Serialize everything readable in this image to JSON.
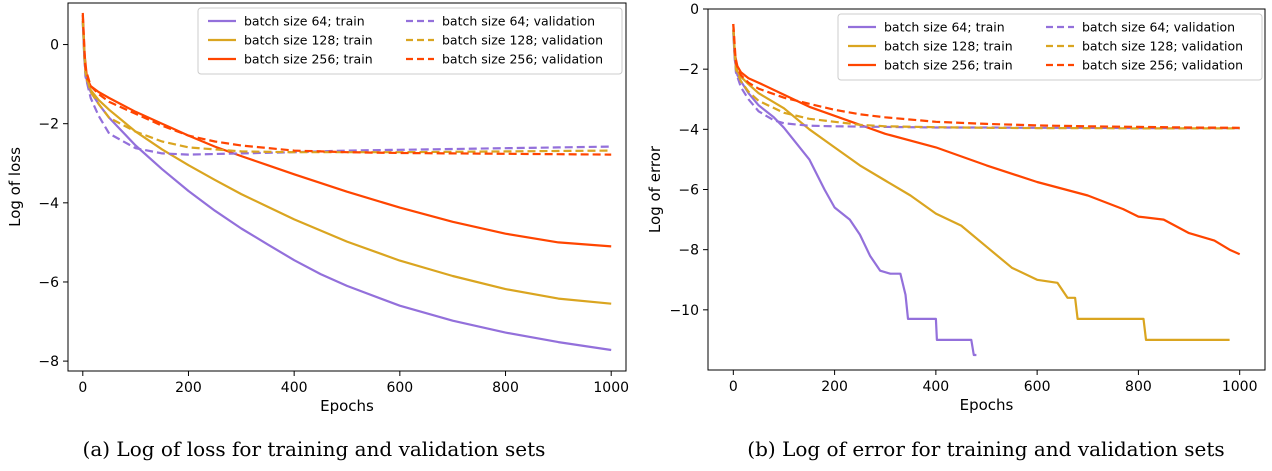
{
  "chart_data": [
    {
      "type": "line",
      "title": "",
      "caption": "(a) Log of loss for training and validation sets",
      "xlabel": "Epochs",
      "ylabel": "Log of loss",
      "xlim": [
        -28,
        1028
      ],
      "ylim": [
        -8.25,
        1.05
      ],
      "xticks": [
        0,
        200,
        400,
        600,
        800,
        1000
      ],
      "yticks": [
        0,
        -2,
        -4,
        -6,
        -8
      ],
      "legend": {
        "placement": "top-right",
        "columns": 2
      },
      "grid": false,
      "series": [
        {
          "name": "batch size 64; train",
          "color": "#9370DB",
          "style": "solid",
          "points": [
            [
              0,
              0.6
            ],
            [
              3,
              -0.4
            ],
            [
              8,
              -0.95
            ],
            [
              15,
              -1.2
            ],
            [
              30,
              -1.5
            ],
            [
              50,
              -1.85
            ],
            [
              100,
              -2.55
            ],
            [
              150,
              -3.15
            ],
            [
              200,
              -3.7
            ],
            [
              250,
              -4.2
            ],
            [
              300,
              -4.65
            ],
            [
              350,
              -5.05
            ],
            [
              400,
              -5.45
            ],
            [
              450,
              -5.8
            ],
            [
              500,
              -6.1
            ],
            [
              600,
              -6.6
            ],
            [
              700,
              -6.98
            ],
            [
              800,
              -7.28
            ],
            [
              900,
              -7.52
            ],
            [
              1000,
              -7.72
            ]
          ]
        },
        {
          "name": "batch size 128; train",
          "color": "#DAA520",
          "style": "solid",
          "points": [
            [
              0,
              0.65
            ],
            [
              3,
              -0.35
            ],
            [
              8,
              -0.9
            ],
            [
              15,
              -1.15
            ],
            [
              30,
              -1.4
            ],
            [
              50,
              -1.65
            ],
            [
              100,
              -2.2
            ],
            [
              150,
              -2.65
            ],
            [
              200,
              -3.05
            ],
            [
              250,
              -3.42
            ],
            [
              300,
              -3.78
            ],
            [
              350,
              -4.1
            ],
            [
              400,
              -4.42
            ],
            [
              500,
              -4.98
            ],
            [
              600,
              -5.46
            ],
            [
              700,
              -5.85
            ],
            [
              800,
              -6.18
            ],
            [
              900,
              -6.42
            ],
            [
              1000,
              -6.55
            ]
          ]
        },
        {
          "name": "batch size 256; train",
          "color": "#FF4500",
          "style": "solid",
          "points": [
            [
              0,
              0.8
            ],
            [
              3,
              -0.2
            ],
            [
              8,
              -0.85
            ],
            [
              15,
              -1.05
            ],
            [
              30,
              -1.2
            ],
            [
              50,
              -1.35
            ],
            [
              100,
              -1.7
            ],
            [
              150,
              -2.0
            ],
            [
              200,
              -2.3
            ],
            [
              250,
              -2.58
            ],
            [
              300,
              -2.82
            ],
            [
              350,
              -3.05
            ],
            [
              400,
              -3.28
            ],
            [
              500,
              -3.72
            ],
            [
              600,
              -4.12
            ],
            [
              700,
              -4.48
            ],
            [
              800,
              -4.78
            ],
            [
              900,
              -5.0
            ],
            [
              1000,
              -5.1
            ]
          ]
        },
        {
          "name": "batch size 64; validation",
          "color": "#9370DB",
          "style": "dashed",
          "points": [
            [
              0,
              0.55
            ],
            [
              5,
              -0.8
            ],
            [
              15,
              -1.35
            ],
            [
              30,
              -1.8
            ],
            [
              50,
              -2.25
            ],
            [
              100,
              -2.62
            ],
            [
              150,
              -2.75
            ],
            [
              200,
              -2.78
            ],
            [
              300,
              -2.75
            ],
            [
              400,
              -2.72
            ],
            [
              500,
              -2.68
            ],
            [
              600,
              -2.66
            ],
            [
              700,
              -2.64
            ],
            [
              800,
              -2.62
            ],
            [
              900,
              -2.6
            ],
            [
              1000,
              -2.58
            ]
          ]
        },
        {
          "name": "batch size 128; validation",
          "color": "#DAA520",
          "style": "dashed",
          "points": [
            [
              0,
              0.6
            ],
            [
              5,
              -0.7
            ],
            [
              15,
              -1.2
            ],
            [
              30,
              -1.5
            ],
            [
              50,
              -1.85
            ],
            [
              100,
              -2.2
            ],
            [
              150,
              -2.45
            ],
            [
              200,
              -2.6
            ],
            [
              300,
              -2.7
            ],
            [
              400,
              -2.72
            ],
            [
              500,
              -2.72
            ],
            [
              600,
              -2.72
            ],
            [
              700,
              -2.71
            ],
            [
              800,
              -2.7
            ],
            [
              900,
              -2.69
            ],
            [
              1000,
              -2.68
            ]
          ]
        },
        {
          "name": "batch size 256; validation",
          "color": "#FF4500",
          "style": "dashed",
          "points": [
            [
              0,
              0.75
            ],
            [
              5,
              -0.6
            ],
            [
              15,
              -1.05
            ],
            [
              30,
              -1.25
            ],
            [
              50,
              -1.45
            ],
            [
              100,
              -1.75
            ],
            [
              150,
              -2.05
            ],
            [
              200,
              -2.3
            ],
            [
              250,
              -2.45
            ],
            [
              300,
              -2.55
            ],
            [
              400,
              -2.68
            ],
            [
              500,
              -2.72
            ],
            [
              600,
              -2.74
            ],
            [
              700,
              -2.75
            ],
            [
              800,
              -2.76
            ],
            [
              900,
              -2.77
            ],
            [
              1000,
              -2.78
            ]
          ]
        }
      ]
    },
    {
      "type": "line",
      "title": "",
      "caption": "(b) Log of error for training and validation sets",
      "xlabel": "Epochs",
      "ylabel": "Log of error",
      "xlim": [
        -50,
        1050
      ],
      "ylim": [
        -12.0,
        0.0
      ],
      "xticks": [
        0,
        200,
        400,
        600,
        800,
        1000
      ],
      "yticks": [
        0,
        -2,
        -4,
        -6,
        -8,
        -10
      ],
      "legend": {
        "placement": "top-right",
        "columns": 2
      },
      "grid": false,
      "series": [
        {
          "name": "batch size 64; train",
          "color": "#9370DB",
          "style": "solid",
          "points": [
            [
              0,
              -0.8
            ],
            [
              3,
              -1.7
            ],
            [
              8,
              -2.2
            ],
            [
              15,
              -2.4
            ],
            [
              30,
              -2.8
            ],
            [
              50,
              -3.2
            ],
            [
              80,
              -3.6
            ],
            [
              100,
              -3.95
            ],
            [
              150,
              -5.0
            ],
            [
              180,
              -6.0
            ],
            [
              200,
              -6.6
            ],
            [
              230,
              -7.0
            ],
            [
              250,
              -7.5
            ],
            [
              270,
              -8.2
            ],
            [
              290,
              -8.7
            ],
            [
              310,
              -8.8
            ],
            [
              330,
              -8.8
            ],
            [
              340,
              -9.5
            ],
            [
              345,
              -10.3
            ],
            [
              400,
              -10.3
            ],
            [
              402,
              -11.0
            ],
            [
              470,
              -11.0
            ],
            [
              475,
              -11.5
            ],
            [
              480,
              -11.5
            ]
          ]
        },
        {
          "name": "batch size 128; train",
          "color": "#DAA520",
          "style": "solid",
          "points": [
            [
              0,
              -0.7
            ],
            [
              3,
              -1.6
            ],
            [
              8,
              -2.1
            ],
            [
              15,
              -2.25
            ],
            [
              30,
              -2.5
            ],
            [
              50,
              -2.8
            ],
            [
              100,
              -3.3
            ],
            [
              150,
              -4.0
            ],
            [
              200,
              -4.6
            ],
            [
              250,
              -5.2
            ],
            [
              300,
              -5.7
            ],
            [
              350,
              -6.2
            ],
            [
              400,
              -6.8
            ],
            [
              450,
              -7.2
            ],
            [
              500,
              -7.9
            ],
            [
              550,
              -8.6
            ],
            [
              600,
              -9.0
            ],
            [
              640,
              -9.1
            ],
            [
              660,
              -9.6
            ],
            [
              675,
              -9.6
            ],
            [
              680,
              -10.3
            ],
            [
              810,
              -10.3
            ],
            [
              815,
              -11.0
            ],
            [
              980,
              -11.0
            ]
          ]
        },
        {
          "name": "batch size 256; train",
          "color": "#FF4500",
          "style": "solid",
          "points": [
            [
              0,
              -0.5
            ],
            [
              3,
              -1.5
            ],
            [
              8,
              -1.9
            ],
            [
              15,
              -2.1
            ],
            [
              30,
              -2.3
            ],
            [
              50,
              -2.45
            ],
            [
              100,
              -2.85
            ],
            [
              150,
              -3.25
            ],
            [
              200,
              -3.55
            ],
            [
              250,
              -3.85
            ],
            [
              300,
              -4.15
            ],
            [
              400,
              -4.6
            ],
            [
              500,
              -5.2
            ],
            [
              600,
              -5.75
            ],
            [
              700,
              -6.2
            ],
            [
              770,
              -6.65
            ],
            [
              800,
              -6.9
            ],
            [
              850,
              -7.0
            ],
            [
              900,
              -7.45
            ],
            [
              950,
              -7.7
            ],
            [
              980,
              -8.0
            ],
            [
              1000,
              -8.15
            ]
          ]
        },
        {
          "name": "batch size 64; validation",
          "color": "#9370DB",
          "style": "dashed",
          "points": [
            [
              0,
              -0.7
            ],
            [
              5,
              -2.1
            ],
            [
              15,
              -2.6
            ],
            [
              30,
              -3.0
            ],
            [
              50,
              -3.4
            ],
            [
              80,
              -3.7
            ],
            [
              100,
              -3.8
            ],
            [
              150,
              -3.88
            ],
            [
              200,
              -3.9
            ],
            [
              300,
              -3.92
            ],
            [
              400,
              -3.94
            ],
            [
              500,
              -3.94
            ],
            [
              600,
              -3.95
            ],
            [
              700,
              -3.95
            ],
            [
              800,
              -3.96
            ],
            [
              900,
              -3.96
            ],
            [
              1000,
              -3.96
            ]
          ]
        },
        {
          "name": "batch size 128; validation",
          "color": "#DAA520",
          "style": "dashed",
          "points": [
            [
              0,
              -0.65
            ],
            [
              5,
              -2.0
            ],
            [
              15,
              -2.4
            ],
            [
              30,
              -2.75
            ],
            [
              50,
              -3.05
            ],
            [
              100,
              -3.45
            ],
            [
              150,
              -3.65
            ],
            [
              200,
              -3.75
            ],
            [
              250,
              -3.85
            ],
            [
              300,
              -3.9
            ],
            [
              400,
              -3.93
            ],
            [
              500,
              -3.95
            ],
            [
              600,
              -3.96
            ],
            [
              700,
              -3.96
            ],
            [
              800,
              -3.97
            ],
            [
              900,
              -3.97
            ],
            [
              1000,
              -3.97
            ]
          ]
        },
        {
          "name": "batch size 256; validation",
          "color": "#FF4500",
          "style": "dashed",
          "points": [
            [
              0,
              -0.5
            ],
            [
              5,
              -1.8
            ],
            [
              15,
              -2.2
            ],
            [
              30,
              -2.45
            ],
            [
              50,
              -2.65
            ],
            [
              100,
              -2.95
            ],
            [
              150,
              -3.15
            ],
            [
              200,
              -3.35
            ],
            [
              250,
              -3.5
            ],
            [
              300,
              -3.6
            ],
            [
              400,
              -3.75
            ],
            [
              500,
              -3.82
            ],
            [
              600,
              -3.87
            ],
            [
              700,
              -3.9
            ],
            [
              800,
              -3.92
            ],
            [
              900,
              -3.94
            ],
            [
              1000,
              -3.95
            ]
          ]
        }
      ]
    }
  ]
}
